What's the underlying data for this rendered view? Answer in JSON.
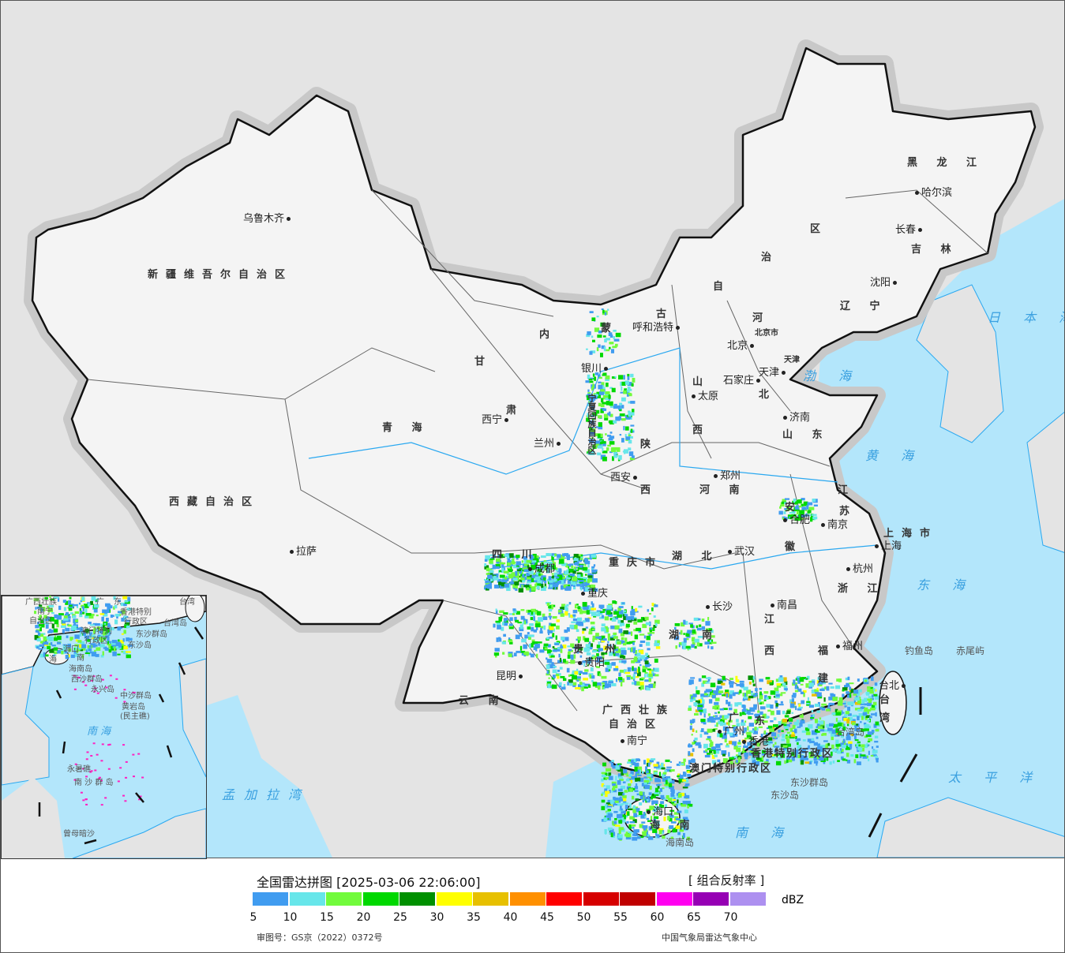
{
  "header": {
    "title": "全国雷达拼图 [2025-03-06 22:06:00]",
    "product": "[ 组合反射率 ]"
  },
  "legend": {
    "unit": "dBZ",
    "colors": [
      "#409cf0",
      "#67e6ea",
      "#72fb3c",
      "#00d800",
      "#009000",
      "#ffff00",
      "#e7c000",
      "#ff9000",
      "#ff0000",
      "#d60000",
      "#c00000",
      "#ff00f0",
      "#9600b4",
      "#ad90f0"
    ],
    "ticks": [
      "5",
      "10",
      "15",
      "20",
      "25",
      "30",
      "35",
      "40",
      "45",
      "50",
      "55",
      "60",
      "65",
      "70"
    ]
  },
  "footer": {
    "approval": "审图号：GS京（2022）0372号",
    "source": "中国气象局雷达气象中心"
  },
  "map": {
    "colors": {
      "land": "#f4f4f4",
      "foreign": "#e4e4e4",
      "sea": "#b3e6fb",
      "border": "#111111",
      "river": "#2aa8f0"
    },
    "provinces": [
      "新疆维吾尔自治区",
      "西藏自治区",
      "青 海",
      "甘",
      "肃",
      "内",
      "蒙",
      "古",
      "自",
      "治",
      "区",
      "黑 龙 江",
      "吉 林",
      "辽 宁",
      "河",
      "北",
      "山",
      "西",
      "陕",
      "西",
      "宁夏回族自治区",
      "山 东",
      "河 南",
      "江",
      "苏",
      "安",
      "徽",
      "湖 北",
      "四 川",
      "重庆市",
      "湖",
      "南",
      "江",
      "西",
      "浙 江",
      "福",
      "建",
      "贵",
      "州",
      "云 南",
      "广西壮族",
      "自治区",
      "广",
      "东",
      "海 南",
      "台",
      "湾",
      "上海市",
      "香港特别行政区",
      "澳门特别行政区",
      "北京市",
      "天津"
    ],
    "cities": [
      "乌鲁木齐",
      "拉萨",
      "西宁",
      "兰州",
      "银川",
      "呼和浩特",
      "北京",
      "天津",
      "石家庄",
      "太原",
      "济南",
      "郑州",
      "西安",
      "成都",
      "重庆",
      "武汉",
      "合肥",
      "南京",
      "上海",
      "杭州",
      "长沙",
      "南昌",
      "福州",
      "贵阳",
      "昆明",
      "南宁",
      "广州",
      "香港",
      "海口",
      "台北",
      "哈尔滨",
      "长春",
      "沈阳"
    ],
    "seas": [
      "日 本 海",
      "渤 海",
      "黄 海",
      "东 海",
      "南 海",
      "太 平 洋",
      "孟加拉湾"
    ],
    "islands": [
      "钓鱼岛",
      "赤尾屿",
      "台湾岛",
      "东沙群岛",
      "东沙岛",
      "海南岛"
    ],
    "inset_labels": [
      "广西壮族",
      "南宁",
      "自治区",
      "广",
      "东",
      "香港特别",
      "行政区",
      "澳门特别",
      "行政区",
      "台湾",
      "台湾岛",
      "东沙群岛",
      "东沙岛",
      "海口",
      "海",
      "南",
      "海南岛",
      "西沙群岛",
      "永兴岛",
      "中沙群岛",
      "黄岩岛",
      "(民主礁)",
      "南 海",
      "永暑礁",
      "南 沙 群 岛",
      "曾母暗沙"
    ]
  }
}
